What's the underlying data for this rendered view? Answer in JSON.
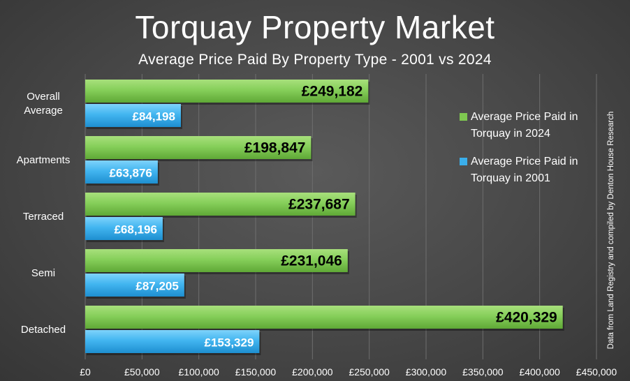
{
  "title": "Torquay Property Market",
  "subtitle": "Average Price Paid By Property Type - 2001 vs 2024",
  "credit": "Data from Land Registry and compiled by Denton House Research",
  "colors": {
    "series_2024": "#7ec850",
    "series_2001": "#3aaeea",
    "background": "#474747",
    "text": "#ffffff"
  },
  "chart_data": {
    "type": "bar",
    "orientation": "horizontal",
    "categories": [
      "Overall Average",
      "Apartments",
      "Terraced",
      "Semi",
      "Detached"
    ],
    "series": [
      {
        "name": "Average Price Paid in Torquay in 2024",
        "values": [
          249182,
          198847,
          237687,
          231046,
          420329
        ],
        "labels": [
          "£249,182",
          "£198,847",
          "£237,687",
          "£231,046",
          "£420,329"
        ]
      },
      {
        "name": "Average Price Paid in Torquay in 2001",
        "values": [
          84198,
          63876,
          68196,
          87205,
          153329
        ],
        "labels": [
          "£84,198",
          "£63,876",
          "£68,196",
          "£87,205",
          "£153,329"
        ]
      }
    ],
    "xlim": [
      0,
      450000
    ],
    "xticks": [
      0,
      50000,
      100000,
      150000,
      200000,
      250000,
      300000,
      350000,
      400000,
      450000
    ],
    "xtick_labels": [
      "£0",
      "£50,000",
      "£100,000",
      "£150,000",
      "£200,000",
      "£250,000",
      "£300,000",
      "£350,000",
      "£400,000",
      "£450,000"
    ],
    "grid": true,
    "legend_position": "right"
  }
}
